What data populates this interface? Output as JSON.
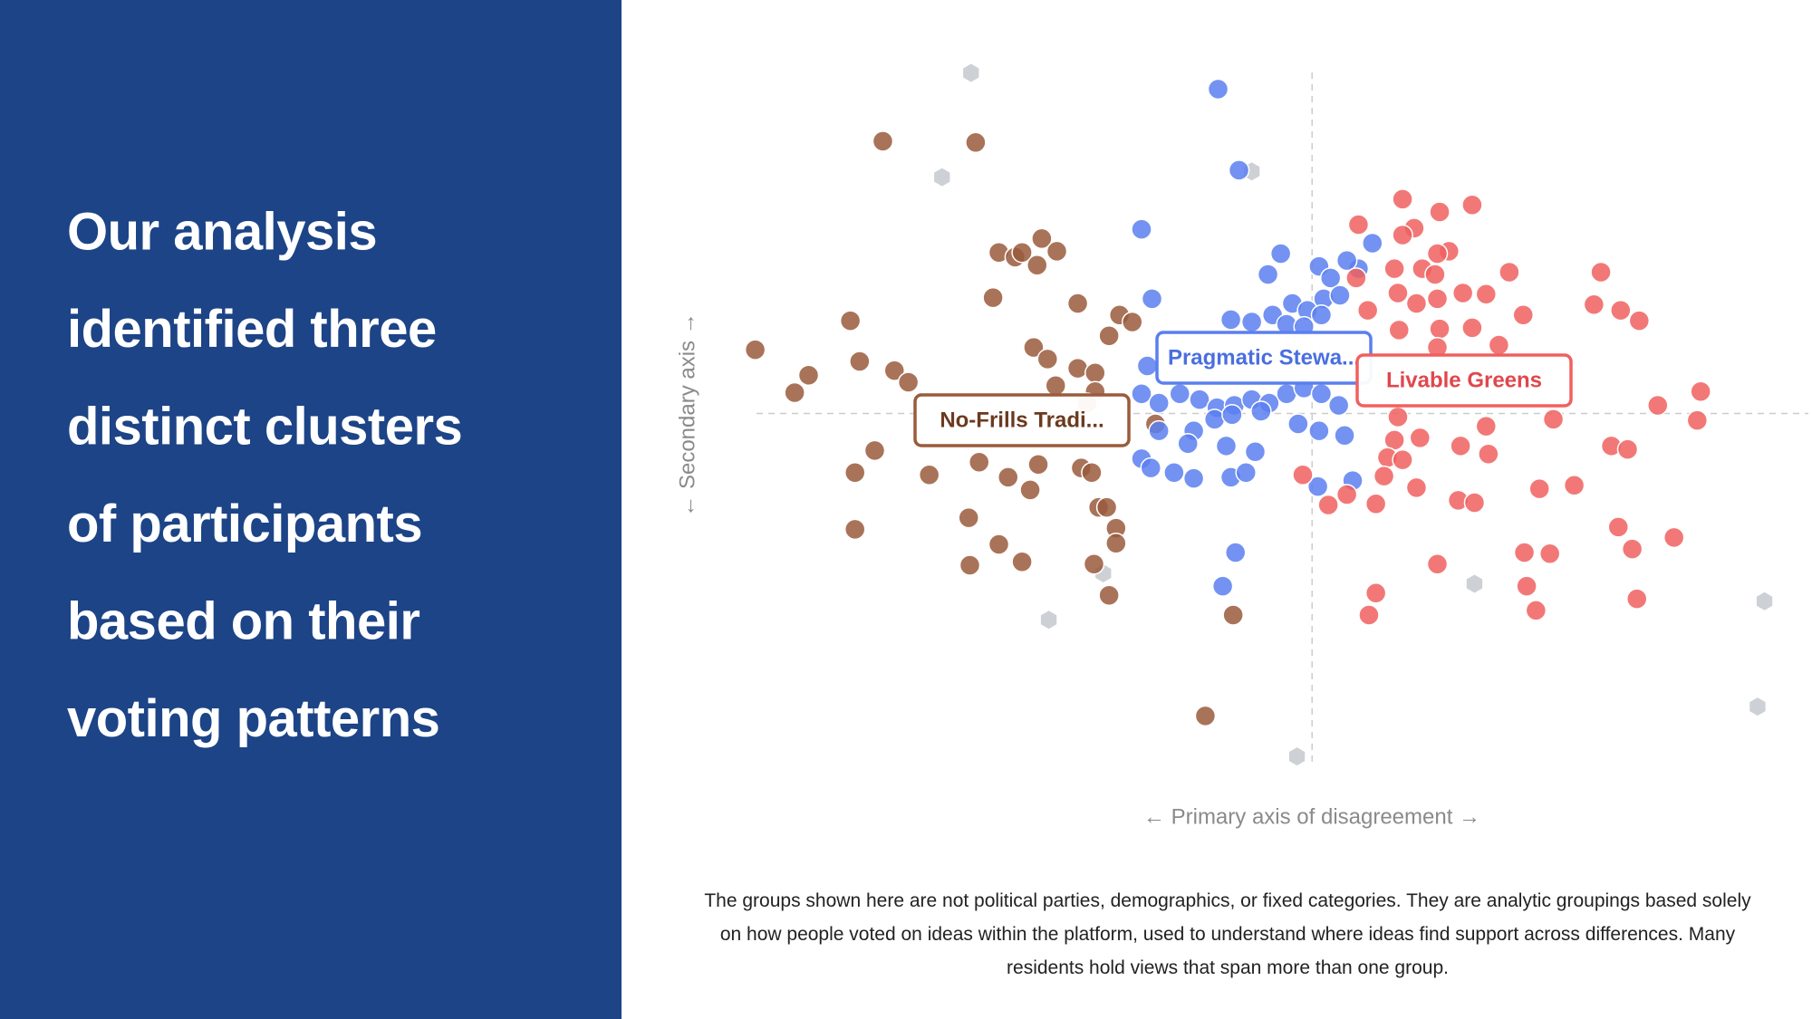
{
  "panel": {
    "heading_lines": [
      "Our analysis",
      "identified three",
      "distinct clusters",
      "of participants",
      "based on their",
      "voting patterns"
    ]
  },
  "chart_data": {
    "type": "scatter",
    "xlabel": "← Primary axis of disagreement →",
    "ylabel": "← Secondary axis →",
    "xlim": [
      -50,
      42
    ],
    "ylim": [
      -31,
      31
    ],
    "series": [
      {
        "name": "No-Frills Tradi...",
        "color": "#9a5b3c",
        "x": [
          -37,
          -29,
          -27,
          -25.6,
          -25,
          -23.3,
          -22,
          -23.7,
          -27.5,
          -20.2,
          -16.6,
          -15.5,
          -17.5,
          -39.8,
          -48,
          -43.4,
          -44.6,
          -39,
          -36,
          -34.8,
          -24,
          -22.8,
          -20.2,
          -18.7,
          -22.1,
          -18.7,
          -19.4,
          -37.7,
          -39.4,
          -33,
          -28.7,
          -26.2,
          -23.6,
          -24.3,
          -19.9,
          -19,
          -18.4,
          -17.7,
          -16.9,
          -16.9,
          -18.8,
          -17.5,
          -39.4,
          -29.6,
          -27,
          -25,
          -29.5,
          -6.8,
          -9.2,
          -13.5
        ],
        "values": [
          23.5,
          23.4,
          13.9,
          13.5,
          13.9,
          15.1,
          14,
          12.8,
          10,
          9.5,
          8.5,
          7.9,
          6.7,
          8,
          5.5,
          3.3,
          1.8,
          4.5,
          3.7,
          2.7,
          5.7,
          4.7,
          3.9,
          3.5,
          2.4,
          1.9,
          0.9,
          -3.2,
          -5.1,
          -5.3,
          -4.2,
          -5.5,
          -4.4,
          -6.6,
          -4.7,
          -5.1,
          -8.1,
          -8.1,
          -9.9,
          -11.2,
          -13,
          -15.7,
          -10,
          -9,
          -11.3,
          -12.8,
          -13.1,
          -17.4,
          -26.1,
          -0.9
        ]
      },
      {
        "name": "Pragmatic Stewa...",
        "color": "#5b7ff0",
        "x": [
          -8.1,
          -6.3,
          -14.7,
          -2.7,
          -3.8,
          -13.8,
          0.6,
          1.6,
          4,
          5.2,
          3,
          -1.7,
          -0.4,
          1,
          2.4,
          -7,
          -5.2,
          -3.4,
          -2.2,
          -0.7,
          0.8,
          -14.2,
          -14.7,
          -13.2,
          -11.4,
          -9.7,
          -8.2,
          -6.7,
          -5.2,
          -3.7,
          -2.2,
          -0.7,
          0.8,
          2.3,
          -10.2,
          -8.4,
          -6.9,
          -4.4,
          -1.2,
          0.6,
          2.8,
          -10.7,
          -7.4,
          -4.9,
          -14.7,
          -13.9,
          -11.9,
          -10.2,
          -7,
          -5.7,
          0.5,
          3.5,
          -6.6,
          -7.7,
          -13.2
        ],
        "values": [
          28,
          21,
          15.9,
          13.8,
          12,
          9.9,
          12.7,
          11.7,
          12.5,
          14.7,
          13.2,
          9.5,
          8.9,
          9.9,
          10.2,
          8.1,
          7.9,
          8.5,
          7.7,
          7.5,
          8.5,
          4.1,
          1.7,
          0.9,
          1.7,
          1.2,
          0.5,
          0.7,
          1.2,
          0.9,
          1.7,
          2.2,
          1.7,
          0.7,
          -1.5,
          -0.5,
          -0.1,
          0.2,
          -0.9,
          -1.5,
          -1.9,
          -2.6,
          -2.8,
          -3.3,
          -3.9,
          -4.7,
          -5.1,
          -5.6,
          -5.5,
          -5.1,
          -6.3,
          -5.8,
          -12,
          -14.9,
          -1.5
        ]
      },
      {
        "name": "Livable Greens",
        "color": "#f0605f",
        "x": [
          7.8,
          13.8,
          11,
          4,
          8.8,
          7.8,
          11.8,
          10.8,
          9.5,
          10.6,
          17,
          7.1,
          24.9,
          3.8,
          7.4,
          10.8,
          13,
          15,
          4.8,
          9,
          24.3,
          26.6,
          28.2,
          18.2,
          7.5,
          11,
          13.8,
          16.1,
          10.8,
          33.5,
          29.8,
          33.2,
          20.8,
          7.4,
          15,
          7.1,
          9.3,
          12.8,
          25.8,
          27.2,
          6.5,
          7.8,
          15.2,
          -0.8,
          1.4,
          3,
          5.5,
          6.2,
          9,
          12.6,
          14,
          19.6,
          22.6,
          26.4,
          31.2,
          27.6,
          18.3,
          20.5,
          10.8,
          5.5,
          4.9,
          18.5,
          19.3,
          28
        ],
        "values": [
          18.5,
          18,
          17.4,
          16.3,
          16,
          15.4,
          14,
          13.8,
          12.5,
          12,
          12.2,
          12.5,
          12.2,
          11.7,
          10.4,
          9.9,
          10.4,
          10.3,
          8.9,
          9.5,
          9.4,
          8.9,
          8,
          8.5,
          7.2,
          7.3,
          7.4,
          5.9,
          5.7,
          1.9,
          0.7,
          -0.6,
          -0.5,
          -0.3,
          -1.1,
          -2.3,
          -2.1,
          -2.8,
          -2.8,
          -3.1,
          -3.8,
          -4,
          -3.5,
          -5.3,
          -7.9,
          -7,
          -7.8,
          -5.4,
          -6.4,
          -7.5,
          -7.7,
          -6.5,
          -6.2,
          -9.8,
          -10.7,
          -11.7,
          -12,
          -12.1,
          -13,
          -15.5,
          -17.4,
          -14.9,
          -17,
          -16
        ]
      },
      {
        "color": "#cdd0d5",
        "x": [
          -29.4,
          -31.9,
          -5.2,
          -18,
          -22.7,
          14,
          39,
          38.4,
          -1.3
        ],
        "values": [
          29.4,
          20.4,
          20.9,
          -13.8,
          -17.8,
          -14.7,
          -16.2,
          -25.3,
          -29.6
        ]
      }
    ]
  },
  "caption": "The groups shown here are not political parties, demographics, or fixed categories. They are analytic groupings based solely on how people voted on ideas within the platform, used to understand where ideas find support across differences. Many residents hold views that span more than one group."
}
